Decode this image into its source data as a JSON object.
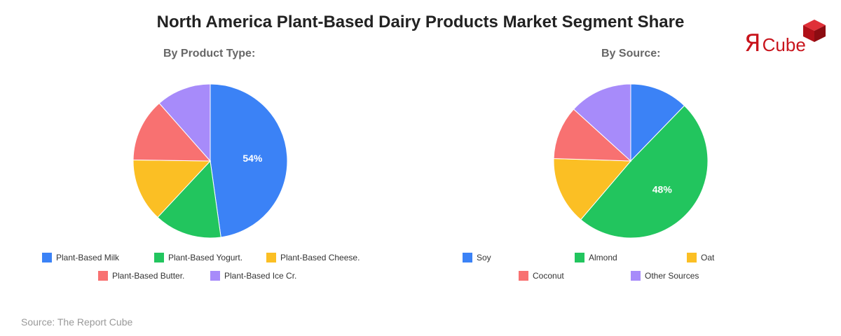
{
  "title": "North America Plant-Based Dairy Products Market Segment Share",
  "logo": {
    "mark": "Я",
    "text": "Cube",
    "brand_color": "#c8141c",
    "icon": "cube-icon"
  },
  "source": "Source: The Report Cube",
  "chart_data": [
    {
      "type": "pie",
      "title": "By Product Type:",
      "slices": [
        {
          "label": "Plant-Based Milk",
          "value": 54,
          "color": "#3b82f6",
          "data_label": "54%"
        },
        {
          "label": "Plant-Based Yogurt.",
          "value": 16,
          "color": "#22c55e"
        },
        {
          "label": "Plant-Based Cheese.",
          "value": 15,
          "color": "#fbbf24"
        },
        {
          "label": "Plant-Based Butter.",
          "value": 15,
          "color": "#f87171"
        },
        {
          "label": "Plant-Based Ice Cr.",
          "value": 13,
          "color": "#a78bfa"
        }
      ]
    },
    {
      "type": "pie",
      "title": "By Source:",
      "slices": [
        {
          "label": "Soy",
          "value": 12,
          "color": "#3b82f6"
        },
        {
          "label": "Almond",
          "value": 48,
          "color": "#22c55e",
          "data_label": "48%"
        },
        {
          "label": "Oat",
          "value": 14,
          "color": "#fbbf24"
        },
        {
          "label": "Coconut",
          "value": 11,
          "color": "#f87171"
        },
        {
          "label": "Other Sources",
          "value": 13,
          "color": "#a78bfa"
        }
      ]
    }
  ]
}
